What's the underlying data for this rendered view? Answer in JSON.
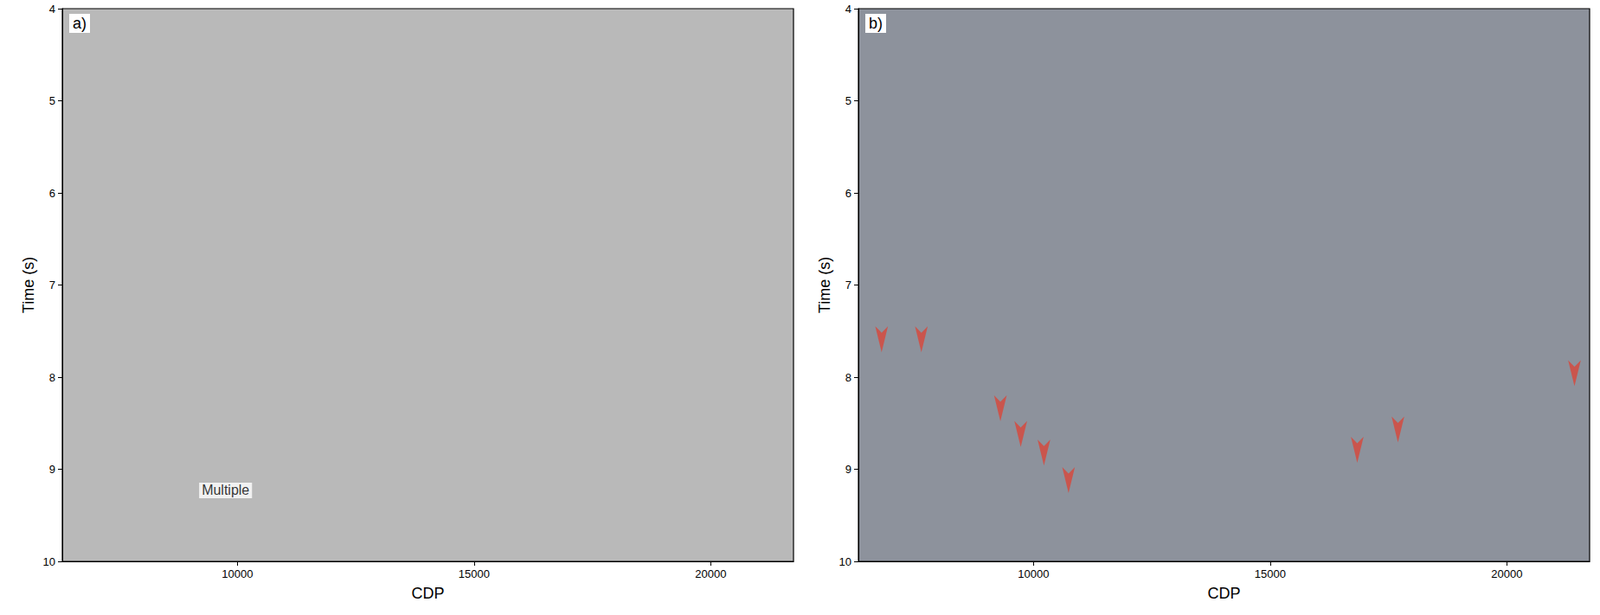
{
  "chart_data": [
    {
      "type": "scatter",
      "title": "a)",
      "xlabel": "CDP",
      "ylabel": "Time (s)",
      "xlim": [
        6300,
        21750
      ],
      "xticks": [
        10000,
        15000,
        20000
      ],
      "ylim": [
        4,
        10
      ],
      "yticks": [
        4,
        5,
        6,
        7,
        8,
        9,
        10
      ],
      "annotations": [
        {
          "text": "Multiple",
          "x": 9750,
          "y": 9.23
        }
      ]
    },
    {
      "type": "scatter",
      "title": "b)",
      "xlabel": "CDP",
      "ylabel": "Time (s)",
      "xlim": [
        6300,
        21750
      ],
      "xticks": [
        10000,
        15000,
        20000
      ],
      "ylim": [
        4,
        10
      ],
      "yticks": [
        4,
        5,
        6,
        7,
        8,
        9,
        10
      ],
      "x": [
        6790,
        7630,
        9300,
        9730,
        10220,
        10740,
        16840,
        17700,
        21430
      ],
      "values": [
        7.87,
        7.87,
        8.62,
        8.9,
        9.1,
        9.4,
        9.07,
        8.85,
        8.24
      ],
      "color": "#d9463a",
      "marker": "arrow"
    }
  ]
}
